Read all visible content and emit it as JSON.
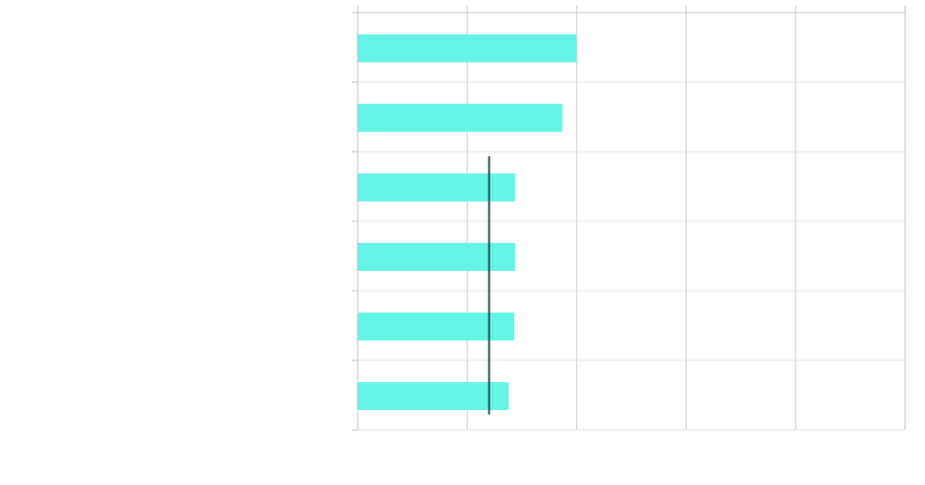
{
  "chart_data": {
    "type": "bar",
    "orientation": "horizontal",
    "title": "",
    "xlabel": "",
    "ylabel": "",
    "categories": [
      "",
      "",
      "",
      "",
      "",
      ""
    ],
    "values": [
      2.0,
      1.87,
      1.44,
      1.44,
      1.43,
      1.38
    ],
    "xlim": [
      0,
      5
    ],
    "x_gridlines": [
      0,
      1,
      2,
      3,
      4,
      5
    ],
    "grid": true,
    "reference_line": {
      "value": 1.2,
      "orientation": "vertical",
      "color": "#1d4449"
    },
    "colors": {
      "bar": "#64f5e6",
      "grid": "#e3e3e3",
      "axis": "#bdbdbd",
      "reference": "#1d4449"
    }
  }
}
